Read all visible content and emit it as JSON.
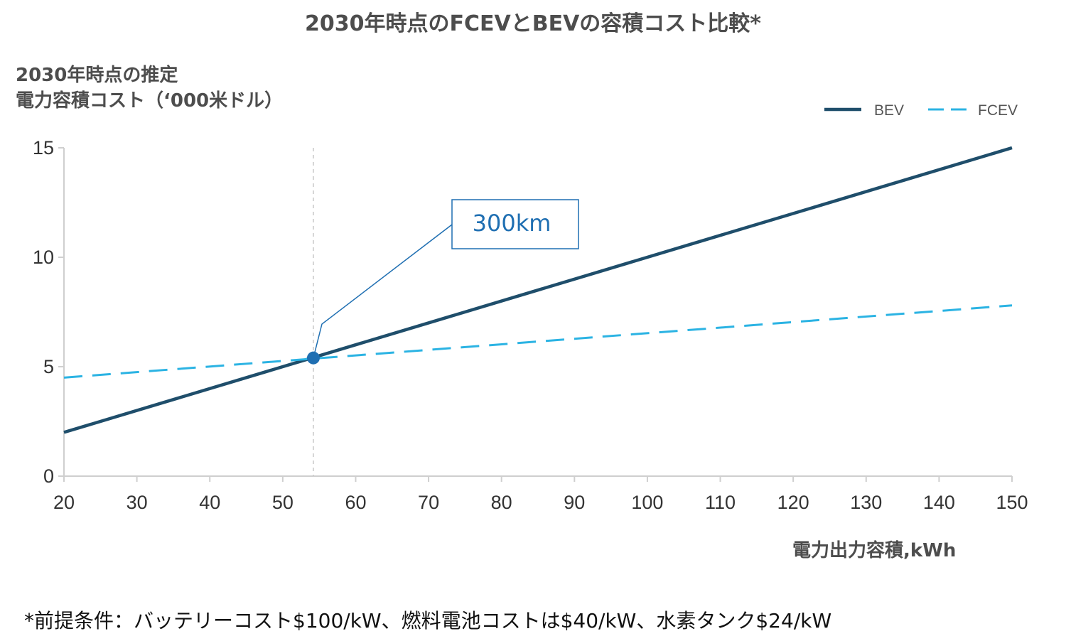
{
  "chart_data": {
    "type": "line",
    "title": "2030年時点のFCEVとBEVの容積コスト比較*",
    "ylabel_line1": "2030年時点の推定",
    "ylabel_line2": "電力容積コスト（‘000米ドル）",
    "xlabel": "電力出力容積,kWh",
    "xlim": [
      20,
      150
    ],
    "ylim": [
      0,
      15
    ],
    "x_ticks": [
      "20",
      "30",
      "40",
      "50",
      "60",
      "70",
      "80",
      "90",
      "100",
      "110",
      "120",
      "130",
      "140",
      "150"
    ],
    "y_ticks": [
      "0",
      "5",
      "10",
      "15"
    ],
    "grid": false,
    "legend_position": "top-right",
    "series": [
      {
        "name": "BEV",
        "style": "solid",
        "color": "#1f4e6b",
        "x": [
          20,
          150
        ],
        "y": [
          2.0,
          15.0
        ]
      },
      {
        "name": "FCEV",
        "style": "dashed",
        "color": "#2bb3e3",
        "x": [
          20,
          150
        ],
        "y": [
          4.5,
          7.8
        ]
      }
    ],
    "annotations": {
      "label": "300km",
      "x": 54.2,
      "y": 5.4,
      "marker_color": "#1f6fb2",
      "vertical_reference_x": 54.2
    },
    "footnote": "*前提条件：バッテリーコスト$100/kW、燃料電池コストは$40/kW、水素タンク$24/kW"
  }
}
